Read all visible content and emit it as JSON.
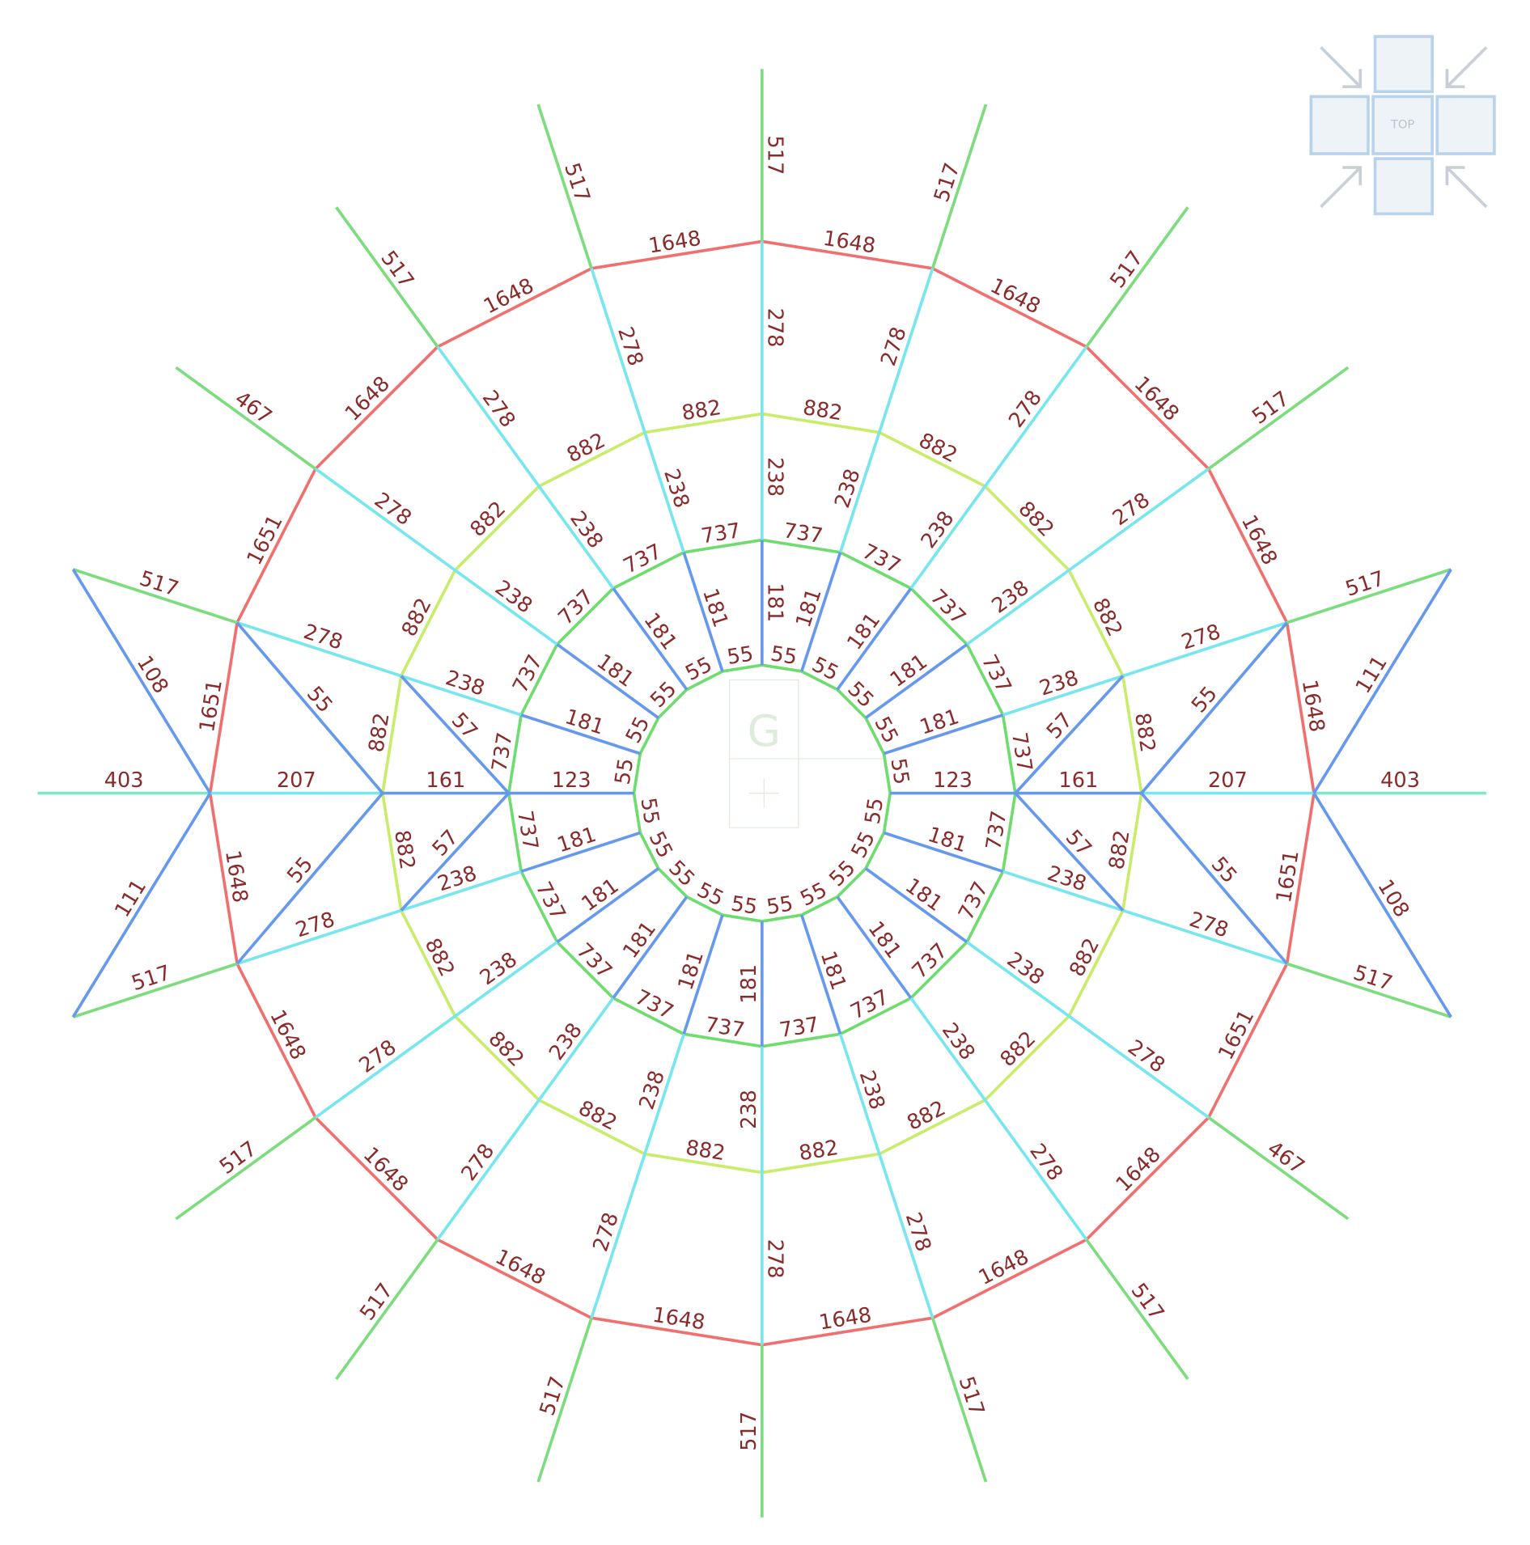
{
  "spokes": [
    [
      "517",
      "278",
      "238",
      "181"
    ],
    [
      "517",
      "278",
      "238",
      "181"
    ],
    [
      "517",
      "278",
      "238",
      "181"
    ],
    [
      "517",
      "278",
      "238",
      "181"
    ],
    [
      "517",
      "278",
      "238",
      "181"
    ],
    [
      "403",
      "207",
      "161",
      "123"
    ],
    [
      "517",
      "278",
      "238",
      "181"
    ],
    [
      "467",
      "278",
      "238",
      "181"
    ],
    [
      "517",
      "278",
      "238",
      "181"
    ],
    [
      "517",
      "278",
      "238",
      "181"
    ],
    [
      "517",
      "278",
      "238",
      "181"
    ],
    [
      "517",
      "278",
      "238",
      "181"
    ],
    [
      "517",
      "278",
      "238",
      "181"
    ],
    [
      "517",
      "278",
      "238",
      "181"
    ],
    [
      "517",
      "278",
      "238",
      "181"
    ],
    [
      "403",
      "207",
      "161",
      "123"
    ],
    [
      "517",
      "278",
      "238",
      "181"
    ],
    [
      "467",
      "278",
      "238",
      "181"
    ],
    [
      "517",
      "278",
      "238",
      "181"
    ],
    [
      "517",
      "278",
      "238",
      "181"
    ]
  ],
  "rings": {
    "outer": [
      "1648",
      "1648",
      "1648",
      "1648",
      "1648",
      "1651",
      "1651",
      "1648",
      "1648",
      "1648",
      "1648",
      "1648",
      "1648",
      "1648",
      "1648",
      "1651",
      "1651",
      "1648",
      "1648",
      "1648"
    ],
    "middle": [
      "882",
      "882",
      "882",
      "882",
      "882",
      "882",
      "882",
      "882",
      "882",
      "882",
      "882",
      "882",
      "882",
      "882",
      "882",
      "882",
      "882",
      "882",
      "882",
      "882"
    ],
    "inner": [
      "737",
      "737",
      "737",
      "737",
      "737",
      "737",
      "737",
      "737",
      "737",
      "737",
      "737",
      "737",
      "737",
      "737",
      "737",
      "737",
      "737",
      "737",
      "737",
      "737"
    ],
    "core": [
      "55",
      "55",
      "55",
      "55",
      "55",
      "55",
      "55",
      "55",
      "55",
      "55",
      "55",
      "55",
      "55",
      "55",
      "55",
      "55",
      "55",
      "55",
      "55",
      "55"
    ]
  },
  "diagonals": [
    "111",
    "108",
    "108",
    "111",
    "55",
    "55",
    "55",
    "55",
    "57",
    "57",
    "57",
    "57"
  ],
  "center_icon": "G",
  "nav": {
    "label": "TOP"
  }
}
